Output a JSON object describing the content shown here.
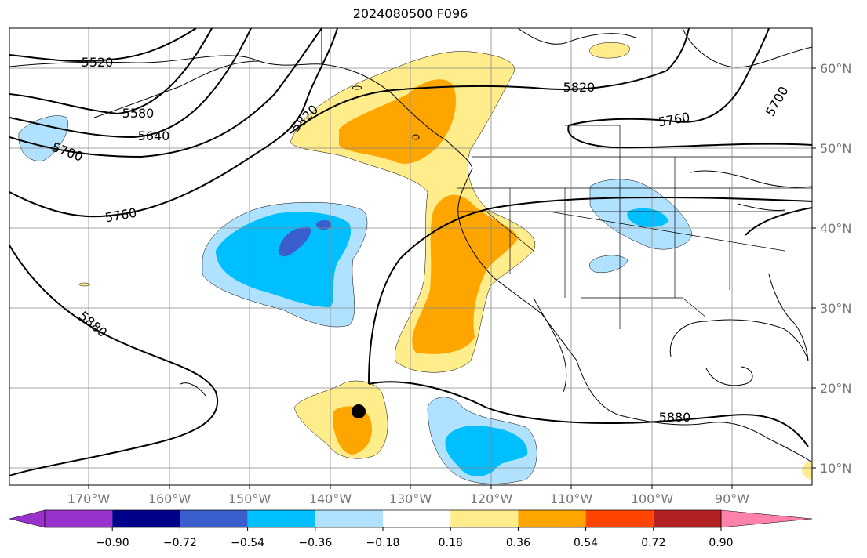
{
  "title": "2024080500 F096",
  "map": {
    "lat_labels": [
      "60°N",
      "50°N",
      "40°N",
      "30°N",
      "20°N",
      "10°N"
    ],
    "lon_labels": [
      "170°W",
      "160°W",
      "150°W",
      "140°W",
      "130°W",
      "120°W",
      "110°W",
      "100°W",
      "90°W"
    ],
    "contour_labels": [
      "5520",
      "5580",
      "5640",
      "5700",
      "5760",
      "5820",
      "5880",
      "5820",
      "5760",
      "5700",
      "5880"
    ],
    "marker": "black-dot-storm-position"
  },
  "colorbar": {
    "colors": [
      "#9932cc",
      "#00008b",
      "#3a5fcd",
      "#00bfff",
      "#b0e2ff",
      "#ffffff",
      "#ffec8b",
      "#ffa500",
      "#ff4500",
      "#b22222",
      "#ff82ab"
    ],
    "ticks": [
      "−0.90",
      "−0.72",
      "−0.54",
      "−0.36",
      "−0.18",
      "0.18",
      "0.36",
      "0.54",
      "0.72",
      "0.90"
    ]
  }
}
